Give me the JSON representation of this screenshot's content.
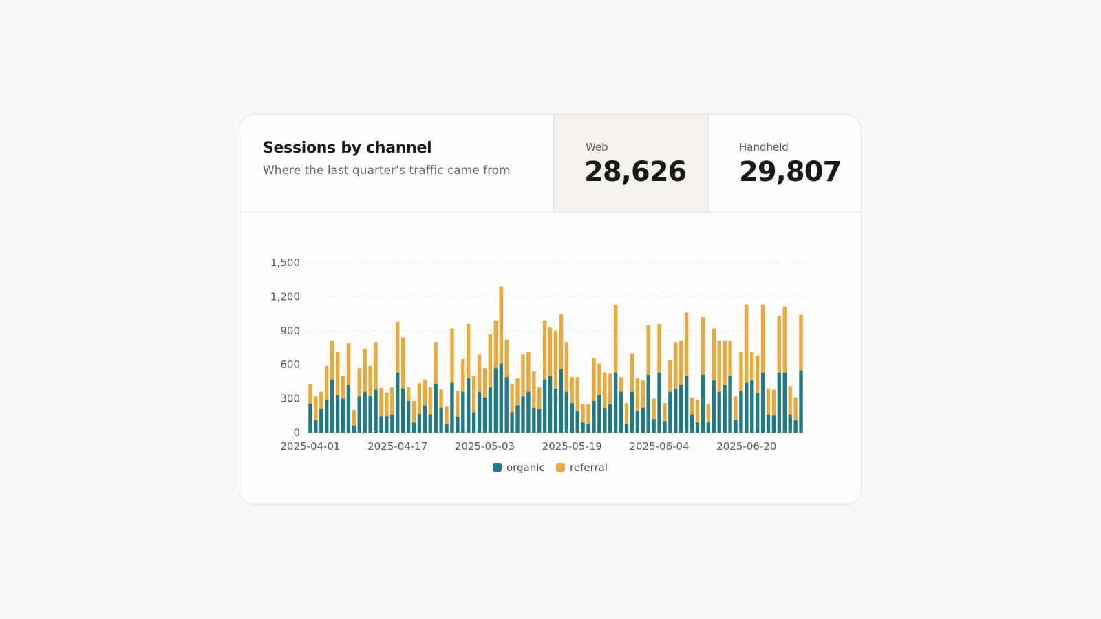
{
  "header": {
    "title": "Sessions by channel",
    "subtitle": "Where the last quarter’s traffic came from"
  },
  "kpis": [
    {
      "label": "Web",
      "value": "28,626"
    },
    {
      "label": "Handheld",
      "value": "29,807"
    }
  ],
  "colors": {
    "organic": "#1f7a83",
    "referral": "#eaa93a",
    "grid": "#dcd8d2"
  },
  "chart_data": {
    "type": "bar",
    "stacked": true,
    "x": [
      "2025-04-01",
      "2025-04-02",
      "2025-04-03",
      "2025-04-04",
      "2025-04-05",
      "2025-04-06",
      "2025-04-07",
      "2025-04-08",
      "2025-04-09",
      "2025-04-10",
      "2025-04-11",
      "2025-04-12",
      "2025-04-13",
      "2025-04-14",
      "2025-04-15",
      "2025-04-16",
      "2025-04-17",
      "2025-04-18",
      "2025-04-19",
      "2025-04-20",
      "2025-04-21",
      "2025-04-22",
      "2025-04-23",
      "2025-04-24",
      "2025-04-25",
      "2025-04-26",
      "2025-04-27",
      "2025-04-28",
      "2025-04-29",
      "2025-04-30",
      "2025-05-01",
      "2025-05-02",
      "2025-05-03",
      "2025-05-04",
      "2025-05-05",
      "2025-05-06",
      "2025-05-07",
      "2025-05-08",
      "2025-05-09",
      "2025-05-10",
      "2025-05-11",
      "2025-05-12",
      "2025-05-13",
      "2025-05-14",
      "2025-05-15",
      "2025-05-16",
      "2025-05-17",
      "2025-05-18",
      "2025-05-19",
      "2025-05-20",
      "2025-05-21",
      "2025-05-22",
      "2025-05-23",
      "2025-05-24",
      "2025-05-25",
      "2025-05-26",
      "2025-05-27",
      "2025-05-28",
      "2025-05-29",
      "2025-05-30",
      "2025-05-31",
      "2025-06-01",
      "2025-06-02",
      "2025-06-03",
      "2025-06-04",
      "2025-06-05",
      "2025-06-06",
      "2025-06-07",
      "2025-06-08",
      "2025-06-09",
      "2025-06-10",
      "2025-06-11",
      "2025-06-12",
      "2025-06-13",
      "2025-06-14",
      "2025-06-15",
      "2025-06-16",
      "2025-06-17",
      "2025-06-18",
      "2025-06-19",
      "2025-06-20",
      "2025-06-21",
      "2025-06-22",
      "2025-06-23",
      "2025-06-24",
      "2025-06-25",
      "2025-06-26",
      "2025-06-27",
      "2025-06-28",
      "2025-06-29",
      "2025-06-30"
    ],
    "x_ticks": [
      "2025-04-01",
      "2025-04-17",
      "2025-05-03",
      "2025-05-19",
      "2025-06-04",
      "2025-06-20"
    ],
    "series": [
      {
        "name": "organic",
        "values": [
          255,
          110,
          210,
          290,
          470,
          330,
          300,
          420,
          60,
          320,
          360,
          320,
          380,
          145,
          145,
          160,
          530,
          390,
          280,
          90,
          165,
          240,
          160,
          430,
          220,
          80,
          440,
          140,
          360,
          480,
          180,
          360,
          310,
          400,
          570,
          610,
          490,
          180,
          240,
          320,
          360,
          220,
          210,
          470,
          500,
          390,
          560,
          360,
          260,
          190,
          90,
          80,
          280,
          330,
          220,
          250,
          530,
          360,
          80,
          360,
          190,
          220,
          510,
          120,
          530,
          100,
          360,
          390,
          420,
          500,
          160,
          90,
          510,
          90,
          460,
          360,
          420,
          500,
          110,
          370,
          440,
          460,
          350,
          530,
          160,
          150,
          530,
          530,
          160,
          110,
          550
        ]
      },
      {
        "name": "referral",
        "values": [
          170,
          210,
          150,
          300,
          340,
          380,
          200,
          370,
          140,
          250,
          380,
          270,
          420,
          250,
          210,
          240,
          450,
          450,
          120,
          190,
          270,
          230,
          240,
          370,
          160,
          150,
          480,
          230,
          290,
          480,
          320,
          330,
          260,
          470,
          420,
          680,
          330,
          250,
          240,
          370,
          350,
          320,
          190,
          520,
          430,
          510,
          490,
          440,
          230,
          300,
          160,
          170,
          380,
          280,
          310,
          270,
          600,
          130,
          180,
          340,
          290,
          240,
          440,
          180,
          430,
          160,
          280,
          410,
          390,
          560,
          150,
          200,
          510,
          160,
          460,
          450,
          390,
          310,
          210,
          340,
          690,
          250,
          330,
          600,
          230,
          230,
          500,
          580,
          250,
          200,
          490
        ]
      }
    ],
    "ylim": [
      0,
      1500
    ],
    "yticks": [
      0,
      300,
      600,
      900,
      1200,
      1500
    ],
    "ytick_labels": [
      "0",
      "300",
      "600",
      "900",
      "1,200",
      "1,500"
    ],
    "grid": true,
    "legend": "bottom-center"
  }
}
